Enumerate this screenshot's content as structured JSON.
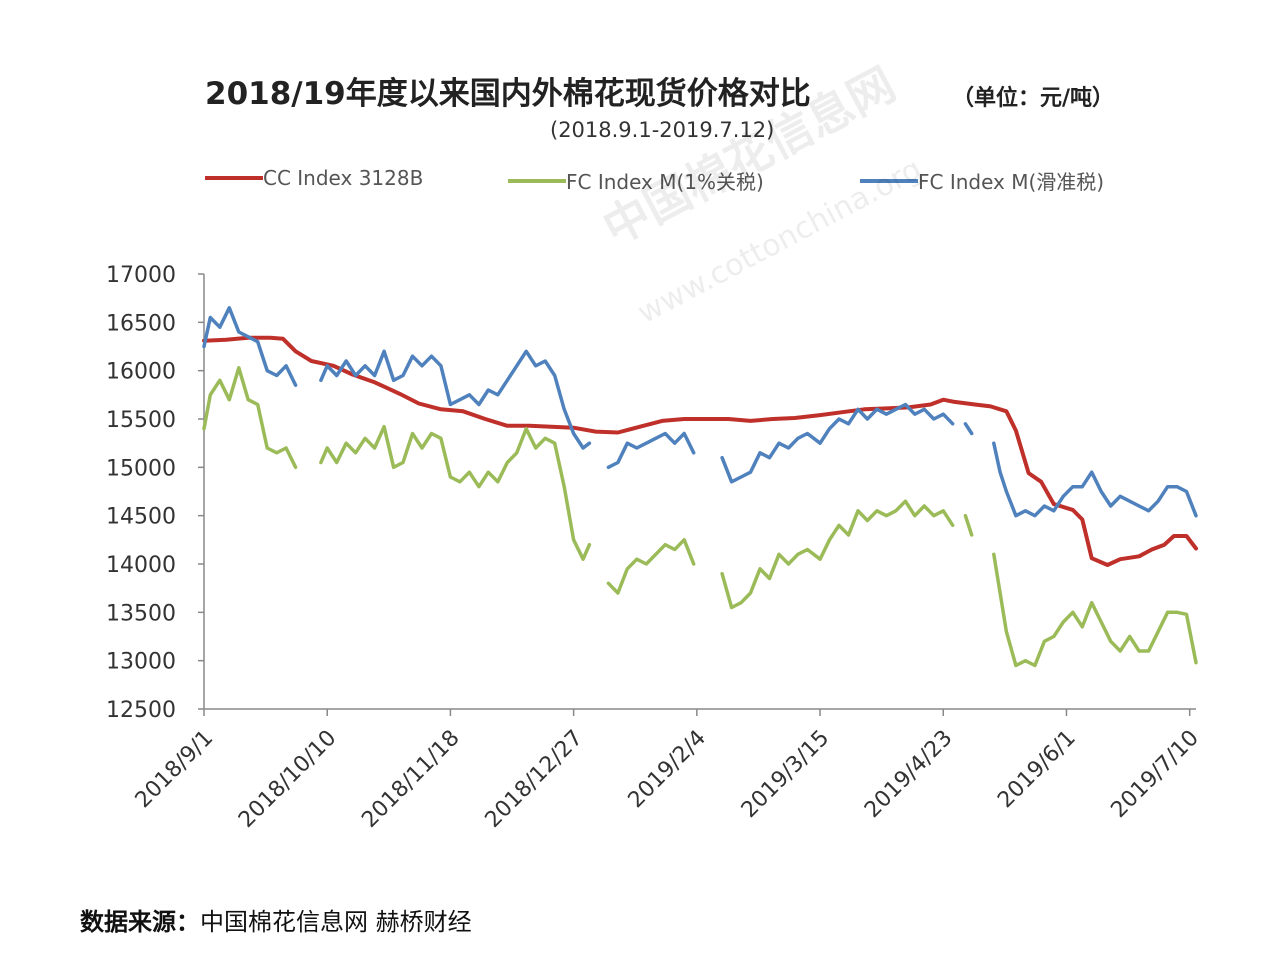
{
  "header": {
    "title": "2018/19年度以来国内外棉花现货价格对比",
    "unit": "（单位：元/吨）",
    "subtitle": "(2018.9.1-2019.7.12)"
  },
  "watermark": {
    "cn": "中国棉花信息网",
    "en": "www.cottonchina.org"
  },
  "source": {
    "label": "数据来源：",
    "text": "中国棉花信息网  赫桥财经"
  },
  "chart_data": {
    "type": "line",
    "ylim": [
      12500,
      17000
    ],
    "yticks": [
      12500,
      13000,
      13500,
      14000,
      14500,
      15000,
      15500,
      16000,
      16500,
      17000
    ],
    "xlim": [
      "2018-09-01",
      "2019-07-12"
    ],
    "xticks": [
      "2018/9/1",
      "2018/10/10",
      "2018/11/18",
      "2018/12/27",
      "2019/2/4",
      "2019/3/15",
      "2019/4/23",
      "2019/6/1",
      "2019/7/10"
    ],
    "legend_position": "top",
    "grid": false,
    "series": [
      {
        "name": "CC Index 3128B",
        "color": "#c0302a",
        "points": [
          [
            "2018-09-01",
            16310
          ],
          [
            "2018-09-08",
            16320
          ],
          [
            "2018-09-15",
            16340
          ],
          [
            "2018-09-22",
            16340
          ],
          [
            "2018-09-26",
            16330
          ],
          [
            "2018-09-30",
            16200
          ],
          [
            "2018-10-05",
            16100
          ],
          [
            "2018-10-12",
            16050
          ],
          [
            "2018-10-18",
            15960
          ],
          [
            "2018-10-25",
            15880
          ],
          [
            "2018-11-02",
            15760
          ],
          [
            "2018-11-08",
            15660
          ],
          [
            "2018-11-15",
            15600
          ],
          [
            "2018-11-22",
            15580
          ],
          [
            "2018-11-29",
            15500
          ],
          [
            "2018-12-06",
            15430
          ],
          [
            "2018-12-13",
            15430
          ],
          [
            "2018-12-20",
            15420
          ],
          [
            "2018-12-27",
            15410
          ],
          [
            "2019-01-03",
            15370
          ],
          [
            "2019-01-10",
            15360
          ],
          [
            "2019-01-17",
            15420
          ],
          [
            "2019-01-24",
            15480
          ],
          [
            "2019-01-31",
            15500
          ],
          [
            "2019-02-07",
            15500
          ],
          [
            "2019-02-14",
            15500
          ],
          [
            "2019-02-21",
            15480
          ],
          [
            "2019-02-28",
            15500
          ],
          [
            "2019-03-07",
            15510
          ],
          [
            "2019-03-15",
            15540
          ],
          [
            "2019-03-22",
            15570
          ],
          [
            "2019-03-29",
            15600
          ],
          [
            "2019-04-05",
            15610
          ],
          [
            "2019-04-12",
            15620
          ],
          [
            "2019-04-19",
            15650
          ],
          [
            "2019-04-23",
            15700
          ],
          [
            "2019-04-26",
            15680
          ],
          [
            "2019-05-03",
            15650
          ],
          [
            "2019-05-08",
            15630
          ],
          [
            "2019-05-13",
            15580
          ],
          [
            "2019-05-16",
            15380
          ],
          [
            "2019-05-20",
            14940
          ],
          [
            "2019-05-24",
            14850
          ],
          [
            "2019-05-28",
            14620
          ],
          [
            "2019-06-03",
            14560
          ],
          [
            "2019-06-06",
            14460
          ],
          [
            "2019-06-09",
            14060
          ],
          [
            "2019-06-14",
            13990
          ],
          [
            "2019-06-18",
            14050
          ],
          [
            "2019-06-24",
            14080
          ],
          [
            "2019-06-28",
            14150
          ],
          [
            "2019-07-02",
            14200
          ],
          [
            "2019-07-05",
            14290
          ],
          [
            "2019-07-09",
            14290
          ],
          [
            "2019-07-12",
            14160
          ]
        ]
      },
      {
        "name": "FC Index M(1%关税)",
        "color": "#9bbb59",
        "points": [
          [
            "2018-09-01",
            15400
          ],
          [
            "2018-09-03",
            15750
          ],
          [
            "2018-09-06",
            15900
          ],
          [
            "2018-09-09",
            15700
          ],
          [
            "2018-09-12",
            16030
          ],
          [
            "2018-09-15",
            15700
          ],
          [
            "2018-09-18",
            15650
          ],
          [
            "2018-09-21",
            15200
          ],
          [
            "2018-09-24",
            15150
          ],
          [
            "2018-09-27",
            15200
          ],
          [
            "2018-09-30",
            15000
          ],
          null,
          [
            "2018-10-08",
            15050
          ],
          [
            "2018-10-10",
            15200
          ],
          [
            "2018-10-13",
            15050
          ],
          [
            "2018-10-16",
            15250
          ],
          [
            "2018-10-19",
            15150
          ],
          [
            "2018-10-22",
            15300
          ],
          [
            "2018-10-25",
            15200
          ],
          [
            "2018-10-28",
            15420
          ],
          [
            "2018-10-31",
            15000
          ],
          [
            "2018-11-03",
            15050
          ],
          [
            "2018-11-06",
            15350
          ],
          [
            "2018-11-09",
            15200
          ],
          [
            "2018-11-12",
            15350
          ],
          [
            "2018-11-15",
            15300
          ],
          [
            "2018-11-18",
            14900
          ],
          [
            "2018-11-21",
            14850
          ],
          [
            "2018-11-24",
            14950
          ],
          [
            "2018-11-27",
            14800
          ],
          [
            "2018-11-30",
            14950
          ],
          [
            "2018-12-03",
            14850
          ],
          [
            "2018-12-06",
            15050
          ],
          [
            "2018-12-09",
            15150
          ],
          [
            "2018-12-12",
            15400
          ],
          [
            "2018-12-15",
            15200
          ],
          [
            "2018-12-18",
            15300
          ],
          [
            "2018-12-21",
            15250
          ],
          [
            "2018-12-24",
            14800
          ],
          [
            "2018-12-27",
            14250
          ],
          [
            "2018-12-30",
            14050
          ],
          [
            "2019-01-01",
            14200
          ],
          null,
          [
            "2019-01-07",
            13800
          ],
          [
            "2019-01-10",
            13700
          ],
          [
            "2019-01-13",
            13950
          ],
          [
            "2019-01-16",
            14050
          ],
          [
            "2019-01-19",
            14000
          ],
          [
            "2019-01-22",
            14100
          ],
          [
            "2019-01-25",
            14200
          ],
          [
            "2019-01-28",
            14150
          ],
          [
            "2019-01-31",
            14250
          ],
          [
            "2019-02-03",
            14000
          ],
          null,
          [
            "2019-02-12",
            13900
          ],
          [
            "2019-02-15",
            13550
          ],
          [
            "2019-02-18",
            13600
          ],
          [
            "2019-02-21",
            13700
          ],
          [
            "2019-02-24",
            13950
          ],
          [
            "2019-02-27",
            13850
          ],
          [
            "2019-03-02",
            14100
          ],
          [
            "2019-03-05",
            14000
          ],
          [
            "2019-03-08",
            14100
          ],
          [
            "2019-03-11",
            14150
          ],
          [
            "2019-03-15",
            14050
          ],
          [
            "2019-03-18",
            14250
          ],
          [
            "2019-03-21",
            14400
          ],
          [
            "2019-03-24",
            14300
          ],
          [
            "2019-03-27",
            14550
          ],
          [
            "2019-03-30",
            14450
          ],
          [
            "2019-04-02",
            14550
          ],
          [
            "2019-04-05",
            14500
          ],
          [
            "2019-04-08",
            14550
          ],
          [
            "2019-04-11",
            14650
          ],
          [
            "2019-04-14",
            14500
          ],
          [
            "2019-04-17",
            14600
          ],
          [
            "2019-04-20",
            14500
          ],
          [
            "2019-04-23",
            14550
          ],
          [
            "2019-04-26",
            14400
          ],
          null,
          [
            "2019-04-30",
            14500
          ],
          [
            "2019-05-02",
            14300
          ],
          null,
          [
            "2019-05-09",
            14100
          ],
          [
            "2019-05-11",
            13700
          ],
          [
            "2019-05-13",
            13300
          ],
          [
            "2019-05-16",
            12950
          ],
          [
            "2019-05-19",
            13000
          ],
          [
            "2019-05-22",
            12950
          ],
          [
            "2019-05-25",
            13200
          ],
          [
            "2019-05-28",
            13250
          ],
          [
            "2019-05-31",
            13400
          ],
          [
            "2019-06-03",
            13500
          ],
          [
            "2019-06-06",
            13350
          ],
          [
            "2019-06-09",
            13600
          ],
          [
            "2019-06-12",
            13400
          ],
          [
            "2019-06-15",
            13200
          ],
          [
            "2019-06-18",
            13100
          ],
          [
            "2019-06-21",
            13250
          ],
          [
            "2019-06-24",
            13100
          ],
          [
            "2019-06-27",
            13100
          ],
          [
            "2019-06-30",
            13300
          ],
          [
            "2019-07-03",
            13500
          ],
          [
            "2019-07-06",
            13500
          ],
          [
            "2019-07-09",
            13480
          ],
          [
            "2019-07-12",
            12980
          ]
        ]
      },
      {
        "name": "FC Index M(滑准税)",
        "color": "#4f81bd",
        "points": [
          [
            "2018-09-01",
            16250
          ],
          [
            "2018-09-03",
            16550
          ],
          [
            "2018-09-06",
            16450
          ],
          [
            "2018-09-09",
            16650
          ],
          [
            "2018-09-12",
            16400
          ],
          [
            "2018-09-15",
            16350
          ],
          [
            "2018-09-18",
            16300
          ],
          [
            "2018-09-21",
            16000
          ],
          [
            "2018-09-24",
            15950
          ],
          [
            "2018-09-27",
            16050
          ],
          [
            "2018-09-30",
            15850
          ],
          null,
          [
            "2018-10-08",
            15900
          ],
          [
            "2018-10-10",
            16050
          ],
          [
            "2018-10-13",
            15950
          ],
          [
            "2018-10-16",
            16100
          ],
          [
            "2018-10-19",
            15950
          ],
          [
            "2018-10-22",
            16050
          ],
          [
            "2018-10-25",
            15950
          ],
          [
            "2018-10-28",
            16200
          ],
          [
            "2018-10-31",
            15900
          ],
          [
            "2018-11-03",
            15950
          ],
          [
            "2018-11-06",
            16150
          ],
          [
            "2018-11-09",
            16050
          ],
          [
            "2018-11-12",
            16150
          ],
          [
            "2018-11-15",
            16050
          ],
          [
            "2018-11-18",
            15650
          ],
          [
            "2018-11-21",
            15700
          ],
          [
            "2018-11-24",
            15750
          ],
          [
            "2018-11-27",
            15650
          ],
          [
            "2018-11-30",
            15800
          ],
          [
            "2018-12-03",
            15750
          ],
          [
            "2018-12-06",
            15900
          ],
          [
            "2018-12-09",
            16050
          ],
          [
            "2018-12-12",
            16200
          ],
          [
            "2018-12-15",
            16050
          ],
          [
            "2018-12-18",
            16100
          ],
          [
            "2018-12-21",
            15950
          ],
          [
            "2018-12-24",
            15600
          ],
          [
            "2018-12-27",
            15350
          ],
          [
            "2018-12-30",
            15200
          ],
          [
            "2019-01-01",
            15250
          ],
          null,
          [
            "2019-01-07",
            15000
          ],
          [
            "2019-01-10",
            15050
          ],
          [
            "2019-01-13",
            15250
          ],
          [
            "2019-01-16",
            15200
          ],
          [
            "2019-01-19",
            15250
          ],
          [
            "2019-01-22",
            15300
          ],
          [
            "2019-01-25",
            15350
          ],
          [
            "2019-01-28",
            15250
          ],
          [
            "2019-01-31",
            15350
          ],
          [
            "2019-02-03",
            15150
          ],
          null,
          [
            "2019-02-12",
            15100
          ],
          [
            "2019-02-15",
            14850
          ],
          [
            "2019-02-18",
            14900
          ],
          [
            "2019-02-21",
            14950
          ],
          [
            "2019-02-24",
            15150
          ],
          [
            "2019-02-27",
            15100
          ],
          [
            "2019-03-02",
            15250
          ],
          [
            "2019-03-05",
            15200
          ],
          [
            "2019-03-08",
            15300
          ],
          [
            "2019-03-11",
            15350
          ],
          [
            "2019-03-15",
            15250
          ],
          [
            "2019-03-18",
            15400
          ],
          [
            "2019-03-21",
            15500
          ],
          [
            "2019-03-24",
            15450
          ],
          [
            "2019-03-27",
            15600
          ],
          [
            "2019-03-30",
            15500
          ],
          [
            "2019-04-02",
            15600
          ],
          [
            "2019-04-05",
            15550
          ],
          [
            "2019-04-08",
            15600
          ],
          [
            "2019-04-11",
            15650
          ],
          [
            "2019-04-14",
            15550
          ],
          [
            "2019-04-17",
            15600
          ],
          [
            "2019-04-20",
            15500
          ],
          [
            "2019-04-23",
            15550
          ],
          [
            "2019-04-26",
            15450
          ],
          null,
          [
            "2019-04-30",
            15450
          ],
          [
            "2019-05-02",
            15350
          ],
          null,
          [
            "2019-05-09",
            15250
          ],
          [
            "2019-05-11",
            14950
          ],
          [
            "2019-05-13",
            14750
          ],
          [
            "2019-05-16",
            14500
          ],
          [
            "2019-05-19",
            14550
          ],
          [
            "2019-05-22",
            14500
          ],
          [
            "2019-05-25",
            14600
          ],
          [
            "2019-05-28",
            14550
          ],
          [
            "2019-05-31",
            14700
          ],
          [
            "2019-06-03",
            14800
          ],
          [
            "2019-06-06",
            14800
          ],
          [
            "2019-06-09",
            14950
          ],
          [
            "2019-06-12",
            14750
          ],
          [
            "2019-06-15",
            14600
          ],
          [
            "2019-06-18",
            14700
          ],
          [
            "2019-06-21",
            14650
          ],
          [
            "2019-06-24",
            14600
          ],
          [
            "2019-06-27",
            14550
          ],
          [
            "2019-06-30",
            14650
          ],
          [
            "2019-07-03",
            14800
          ],
          [
            "2019-07-06",
            14800
          ],
          [
            "2019-07-09",
            14750
          ],
          [
            "2019-07-12",
            14500
          ]
        ]
      }
    ]
  }
}
